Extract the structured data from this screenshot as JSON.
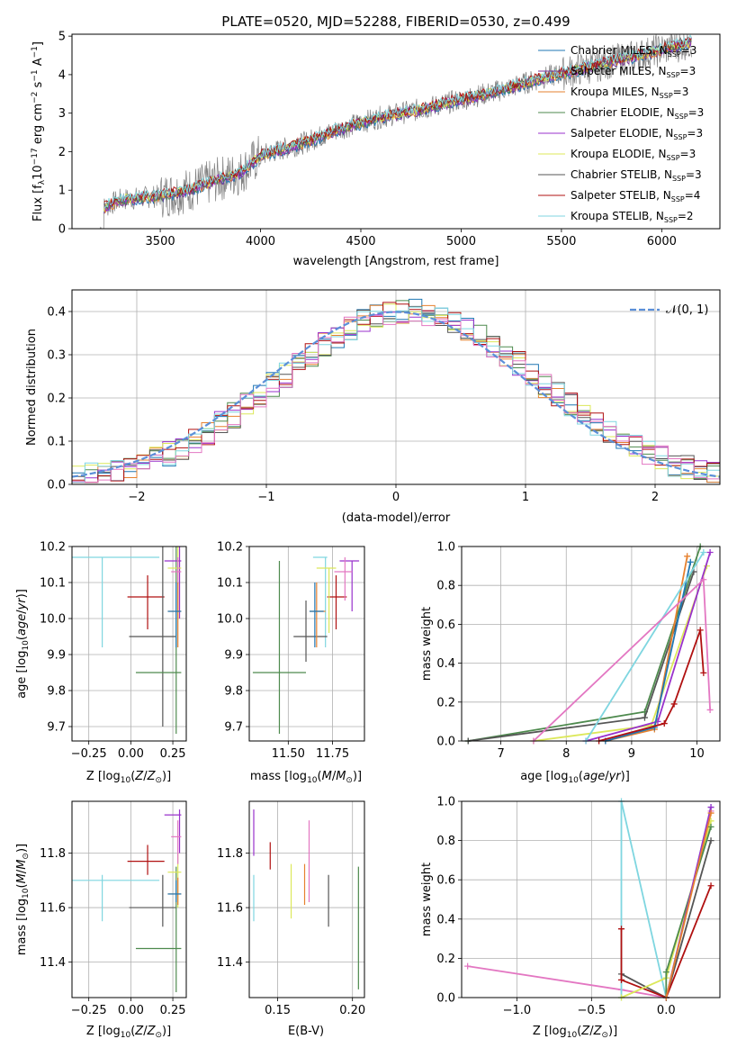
{
  "colors": {
    "chabrier_miles": "#1f77b4",
    "salpeter_miles": "#7b3294",
    "kroupa_miles": "#e6812f",
    "chabrier_elodie": "#4e8a4e",
    "salpeter_elodie": "#9932cc",
    "kroupa_elodie": "#dce85a",
    "chabrier_stelib": "#555555",
    "salpeter_stelib": "#b01010",
    "kroupa_stelib": "#7fd6e0",
    "pink": "#e377c2",
    "data": "#808080",
    "normal": "#5b8fd8"
  },
  "panel1": {
    "title": "PLATE=0520, MJD=52288, FIBERID=0530, z=0.499",
    "xlabel": "wavelength [Angstrom, rest frame]",
    "ylabel_parts": [
      "Flux [f",
      "λ",
      "10",
      "−17",
      " erg cm",
      "−2",
      " s",
      "−1",
      " A",
      "−1",
      "]"
    ],
    "xticks": [
      "3500",
      "4000",
      "4500",
      "5000",
      "5500",
      "6000"
    ],
    "yticks": [
      "0",
      "1",
      "2",
      "3",
      "4",
      "5"
    ],
    "legend": [
      {
        "name": "Chabrier MILES",
        "n": "3"
      },
      {
        "name": "Salpeter MILES",
        "n": "3"
      },
      {
        "name": "Kroupa MILES",
        "n": "3"
      },
      {
        "name": "Chabrier ELODIE",
        "n": "3"
      },
      {
        "name": "Salpeter ELODIE",
        "n": "3"
      },
      {
        "name": "Kroupa ELODIE",
        "n": "3"
      },
      {
        "name": "Chabrier STELIB",
        "n": "3"
      },
      {
        "name": "Salpeter STELIB",
        "n": "4"
      },
      {
        "name": "Kroupa STELIB",
        "n": "2"
      }
    ],
    "nssp_label": "N",
    "nssp_sub": "SSP"
  },
  "panel2": {
    "xlabel": "(data-model)/error",
    "ylabel": "Normed distribution",
    "xticks": [
      "−2",
      "−1",
      "0",
      "1",
      "2"
    ],
    "yticks": [
      "0.0",
      "0.1",
      "0.2",
      "0.3",
      "0.4"
    ],
    "legend_label": "𝒩(0, 1)"
  },
  "panel3": {
    "xlabel_a": "Z [log",
    "xlabel_b": "10",
    "xlabel_c": "(Z/Z",
    "xlabel_d": "⊙",
    "xlabel_e": ")]",
    "ylabel": "age  [log10(age/yr)]",
    "xticks": [
      "−0.25",
      "0.00",
      "0.25"
    ],
    "yticks": [
      "9.7",
      "9.8",
      "9.9",
      "10.0",
      "10.1",
      "10.2"
    ]
  },
  "panel4": {
    "xlabel": "mass [log10(M/M⊙)]",
    "xticks": [
      "11.50",
      "11.75"
    ],
    "yticks": [
      "9.7",
      "9.8",
      "9.9",
      "10.0",
      "10.1",
      "10.2"
    ]
  },
  "panel5": {
    "xlabel": "age  [log10(age/yr)]",
    "ylabel": "mass weight",
    "xticks": [
      "7",
      "8",
      "9",
      "10"
    ],
    "yticks": [
      "0.0",
      "0.2",
      "0.4",
      "0.6",
      "0.8",
      "1.0"
    ]
  },
  "panel6": {
    "xlabel": "Z [log10(Z/Z⊙)]",
    "ylabel": "mass [log10(M/M⊙)]",
    "xticks": [
      "−0.25",
      "0.00",
      "0.25"
    ],
    "yticks": [
      "11.4",
      "11.6",
      "11.8"
    ]
  },
  "panel7": {
    "xlabel": "E(B-V)",
    "xticks": [
      "0.15",
      "0.20"
    ],
    "yticks": [
      "11.4",
      "11.6",
      "11.8"
    ]
  },
  "panel8": {
    "xlabel": "Z [log10(Z/Z⊙)]",
    "ylabel": "mass weight",
    "xticks": [
      "−1.0",
      "−0.5",
      "0.0"
    ],
    "yticks": [
      "0.0",
      "0.2",
      "0.4",
      "0.6",
      "0.8",
      "1.0"
    ]
  },
  "chart_data": [
    {
      "type": "line",
      "title": "PLATE=0520, MJD=52288, FIBERID=0530, z=0.499",
      "xlabel": "wavelength [Angstrom, rest frame]",
      "ylabel": "Flux [fλ10−17 erg cm−2 s−1 A−1]",
      "xlim": [
        3060,
        6290
      ],
      "ylim": [
        0,
        5.05
      ],
      "continuum": {
        "x": [
          3220,
          3300,
          3500,
          3600,
          3700,
          3800,
          3900,
          4000,
          4200,
          4400,
          4600,
          4800,
          5000,
          5200,
          5400,
          5600,
          5800,
          6000,
          6150
        ],
        "y": [
          0.55,
          0.75,
          0.85,
          0.95,
          1.1,
          1.3,
          1.45,
          1.9,
          2.2,
          2.6,
          2.9,
          3.1,
          3.35,
          3.6,
          3.9,
          4.15,
          4.4,
          4.65,
          4.85
        ]
      },
      "legend": "upper-right"
    },
    {
      "type": "bar",
      "xlabel": "(data-model)/error",
      "ylabel": "Normed distribution",
      "xlim": [
        -2.5,
        2.5
      ],
      "ylim": [
        0,
        0.45
      ],
      "normal_curve": {
        "mean": 0,
        "sigma": 1
      },
      "bin_width": 0.1,
      "grid": true
    },
    {
      "type": "scatter",
      "xlabel": "Z [log10(Z/Z⊙)]",
      "ylabel": "age  [log10(age/yr)]",
      "xlim": [
        -0.35,
        0.33
      ],
      "ylim": [
        9.66,
        10.2
      ],
      "points": [
        {
          "c": "kroupa_stelib",
          "x": -0.17,
          "y": 10.17,
          "xl": -0.45,
          "xh": 0.17,
          "yl": 9.92,
          "yh": 10.17
        },
        {
          "c": "salpeter_stelib",
          "x": 0.1,
          "y": 10.06,
          "xl": -0.02,
          "xh": 0.2,
          "yl": 9.97,
          "yh": 10.12
        },
        {
          "c": "chabrier_stelib",
          "x": 0.19,
          "y": 9.95,
          "xl": -0.01,
          "xh": 0.27,
          "yl": 9.7,
          "yh": 10.2
        },
        {
          "c": "chabrier_elodie",
          "x": 0.27,
          "y": 9.85,
          "xl": 0.03,
          "xh": 0.3,
          "yl": 9.68,
          "yh": 10.2
        },
        {
          "c": "salpeter_elodie",
          "x": 0.29,
          "y": 10.16,
          "xl": 0.2,
          "xh": 0.3,
          "yl": 10.0,
          "yh": 10.2
        },
        {
          "c": "kroupa_elodie",
          "x": 0.28,
          "y": 10.14,
          "xl": 0.22,
          "xh": 0.3,
          "yl": 10.0,
          "yh": 10.2
        },
        {
          "c": "pink",
          "x": 0.28,
          "y": 10.13,
          "xl": 0.24,
          "xh": 0.3,
          "yl": 10.02,
          "yh": 10.17
        },
        {
          "c": "kroupa_miles",
          "x": 0.28,
          "y": 10.02,
          "xl": 0.22,
          "xh": 0.3,
          "yl": 9.92,
          "yh": 10.1
        },
        {
          "c": "chabrier_miles",
          "x": 0.27,
          "y": 10.02,
          "xl": 0.22,
          "xh": 0.3,
          "yl": 9.92,
          "yh": 10.1
        }
      ]
    },
    {
      "type": "scatter",
      "xlabel": "mass [log10(M/M⊙)]",
      "xlim": [
        11.28,
        11.93
      ],
      "ylim": [
        9.66,
        10.2
      ],
      "points": [
        {
          "c": "kroupa_stelib",
          "x": 11.71,
          "y": 10.17,
          "xl": 11.64,
          "xh": 11.72,
          "yl": 9.92,
          "yh": 10.17
        },
        {
          "c": "salpeter_stelib",
          "x": 11.77,
          "y": 10.06,
          "xl": 11.72,
          "xh": 11.83,
          "yl": 9.97,
          "yh": 10.12
        },
        {
          "c": "chabrier_stelib",
          "x": 11.6,
          "y": 9.95,
          "xl": 11.53,
          "xh": 11.72,
          "yl": 9.88,
          "yh": 10.05
        },
        {
          "c": "chabrier_elodie",
          "x": 11.45,
          "y": 9.85,
          "xl": 11.3,
          "xh": 11.6,
          "yl": 9.68,
          "yh": 10.16
        },
        {
          "c": "salpeter_elodie",
          "x": 11.86,
          "y": 10.16,
          "xl": 11.79,
          "xh": 11.9,
          "yl": 10.02,
          "yh": 10.16
        },
        {
          "c": "kroupa_elodie",
          "x": 11.73,
          "y": 10.14,
          "xl": 11.66,
          "xh": 11.77,
          "yl": 9.96,
          "yh": 10.14
        },
        {
          "c": "pink",
          "x": 11.82,
          "y": 10.13,
          "xl": 11.76,
          "xh": 11.86,
          "yl": 10.05,
          "yh": 10.17
        },
        {
          "c": "kroupa_miles",
          "x": 11.66,
          "y": 10.02,
          "xl": 11.62,
          "xh": 11.71,
          "yl": 9.92,
          "yh": 10.1
        },
        {
          "c": "chabrier_miles",
          "x": 11.65,
          "y": 10.02,
          "xl": 11.62,
          "xh": 11.7,
          "yl": 9.92,
          "yh": 10.1
        }
      ]
    },
    {
      "type": "line",
      "xlabel": "age  [log10(age/yr)]",
      "ylabel": "mass weight",
      "xlim": [
        6.4,
        10.35
      ],
      "ylim": [
        0,
        1.0
      ],
      "series": [
        {
          "c": "chabrier_elodie",
          "x": [
            6.5,
            9.2,
            10.05
          ],
          "y": [
            0,
            0.15,
            1.0
          ]
        },
        {
          "c": "chabrier_stelib",
          "x": [
            6.5,
            9.2,
            9.95
          ],
          "y": [
            0,
            0.12,
            0.87
          ]
        },
        {
          "c": "kroupa_elodie",
          "x": [
            7.5,
            9.3,
            10.15
          ],
          "y": [
            0,
            0.08,
            0.9
          ]
        },
        {
          "c": "salpeter_elodie",
          "x": [
            8.3,
            9.4,
            10.2
          ],
          "y": [
            0,
            0.1,
            0.97
          ]
        },
        {
          "c": "kroupa_miles",
          "x": [
            8.6,
            9.35,
            9.85
          ],
          "y": [
            0,
            0.06,
            0.95
          ]
        },
        {
          "c": "chabrier_miles",
          "x": [
            8.6,
            9.35,
            9.9
          ],
          "y": [
            0,
            0.07,
            0.92
          ]
        },
        {
          "c": "kroupa_stelib",
          "x": [
            8.3,
            10.1
          ],
          "y": [
            0,
            0.97
          ]
        },
        {
          "c": "pink",
          "x": [
            7.5,
            10.1,
            10.2
          ],
          "y": [
            0,
            0.83,
            0.16
          ]
        },
        {
          "c": "salpeter_stelib",
          "x": [
            8.5,
            9.5,
            9.65,
            10.05,
            10.1
          ],
          "y": [
            0,
            0.09,
            0.19,
            0.57,
            0.35
          ]
        }
      ]
    },
    {
      "type": "scatter",
      "xlabel": "Z [log10(Z/Z⊙)]",
      "ylabel": "mass [log10(M/M⊙)]",
      "xlim": [
        -0.35,
        0.33
      ],
      "ylim": [
        11.27,
        11.99
      ],
      "points": [
        {
          "c": "kroupa_stelib",
          "x": -0.17,
          "y": 11.7,
          "xl": -0.45,
          "xh": 0.17,
          "yl": 11.55,
          "yh": 11.72
        },
        {
          "c": "salpeter_stelib",
          "x": 0.1,
          "y": 11.77,
          "xl": -0.02,
          "xh": 0.2,
          "yl": 11.72,
          "yh": 11.83
        },
        {
          "c": "chabrier_stelib",
          "x": 0.19,
          "y": 11.6,
          "xl": -0.01,
          "xh": 0.27,
          "yl": 11.53,
          "yh": 11.72
        },
        {
          "c": "chabrier_elodie",
          "x": 0.27,
          "y": 11.45,
          "xl": 0.03,
          "xh": 0.3,
          "yl": 11.29,
          "yh": 11.75
        },
        {
          "c": "salpeter_elodie",
          "x": 0.29,
          "y": 11.94,
          "xl": 0.2,
          "xh": 0.3,
          "yl": 11.8,
          "yh": 11.96
        },
        {
          "c": "kroupa_elodie",
          "x": 0.28,
          "y": 11.73,
          "xl": 0.22,
          "xh": 0.3,
          "yl": 11.6,
          "yh": 11.8
        },
        {
          "c": "pink",
          "x": 0.28,
          "y": 11.86,
          "xl": 0.24,
          "xh": 0.3,
          "yl": 11.76,
          "yh": 11.92
        },
        {
          "c": "kroupa_miles",
          "x": 0.28,
          "y": 11.65,
          "xl": 0.22,
          "xh": 0.3,
          "yl": 11.61,
          "yh": 11.71
        },
        {
          "c": "chabrier_miles",
          "x": 0.27,
          "y": 11.65,
          "xl": 0.22,
          "xh": 0.3,
          "yl": 11.62,
          "yh": 11.7
        }
      ]
    },
    {
      "type": "scatter",
      "xlabel": "E(B-V)",
      "xlim": [
        0.131,
        0.208
      ],
      "ylim": [
        11.27,
        11.99
      ],
      "points": [
        {
          "c": "kroupa_stelib",
          "x": 0.134,
          "yl": 11.55,
          "yh": 11.72
        },
        {
          "c": "salpeter_elodie",
          "x": 0.134,
          "yl": 11.79,
          "yh": 11.96
        },
        {
          "c": "salpeter_stelib",
          "x": 0.145,
          "yl": 11.74,
          "yh": 11.84
        },
        {
          "c": "kroupa_elodie",
          "x": 0.159,
          "yl": 11.56,
          "yh": 11.76
        },
        {
          "c": "kroupa_miles",
          "x": 0.168,
          "yl": 11.61,
          "yh": 11.76
        },
        {
          "c": "pink",
          "x": 0.171,
          "yl": 11.62,
          "yh": 11.92
        },
        {
          "c": "chabrier_stelib",
          "x": 0.184,
          "yl": 11.53,
          "yh": 11.72
        },
        {
          "c": "chabrier_elodie",
          "x": 0.204,
          "yl": 11.3,
          "yh": 11.75
        }
      ]
    },
    {
      "type": "line",
      "xlabel": "Z [log10(Z/Z⊙)]",
      "ylabel": "mass weight",
      "xlim": [
        -1.37,
        0.36
      ],
      "ylim": [
        0,
        1.0
      ],
      "series": [
        {
          "c": "pink",
          "x": [
            -1.33,
            -0.3,
            0.0,
            0.3
          ],
          "y": [
            0.16,
            0.04,
            0,
            0.95
          ]
        },
        {
          "c": "kroupa_stelib",
          "x": [
            -0.3,
            -0.3,
            0.0,
            0.3
          ],
          "y": [
            0,
            1.0,
            0,
            0.97
          ]
        },
        {
          "c": "chabrier_stelib",
          "x": [
            -0.3,
            0.0,
            0.3
          ],
          "y": [
            0.12,
            0,
            0.8
          ]
        },
        {
          "c": "salpeter_stelib",
          "x": [
            -0.3,
            -0.3,
            0.0,
            0.3
          ],
          "y": [
            0.35,
            0.09,
            0,
            0.57
          ]
        },
        {
          "c": "kroupa_elodie",
          "x": [
            -0.3,
            0.0,
            0.3
          ],
          "y": [
            0.0,
            0.1,
            0.9
          ]
        },
        {
          "c": "chabrier_elodie",
          "x": [
            0.0,
            0.0,
            0.3
          ],
          "y": [
            0.0,
            0.13,
            0.87
          ]
        },
        {
          "c": "salpeter_elodie",
          "x": [
            0.0,
            0.3
          ],
          "y": [
            0.0,
            0.97
          ]
        },
        {
          "c": "kroupa_miles",
          "x": [
            0.0,
            0.3
          ],
          "y": [
            0.0,
            0.94
          ]
        }
      ]
    }
  ]
}
